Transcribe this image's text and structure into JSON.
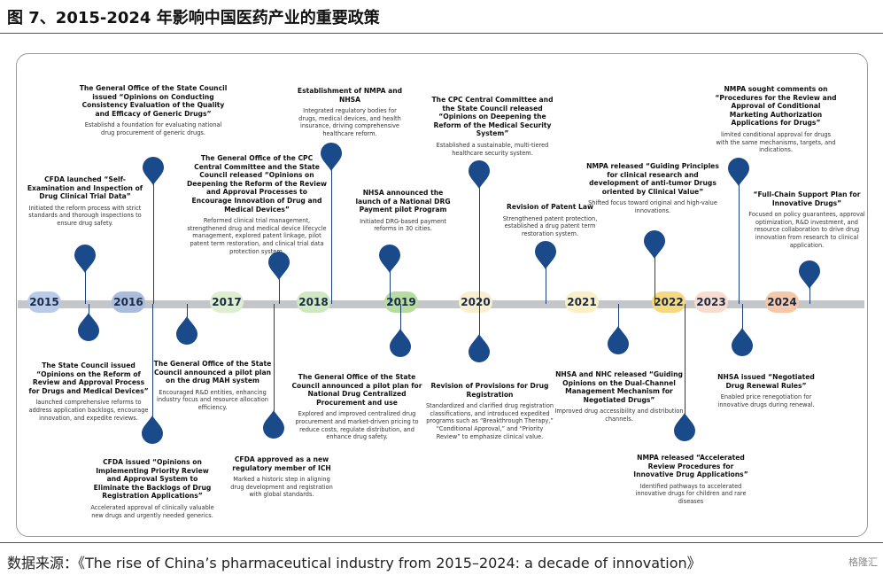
{
  "figure": {
    "title": "图 7、2015-2024 年影响中国医药产业的重要政策",
    "caption": "数据来源：《The rise of China’s pharmaceutical industry from 2015–2024: a decade of innovation》",
    "brand": "格隆汇"
  },
  "colors": {
    "pin": "#1a4a8a",
    "stem": "#1a3f7a",
    "axis": "#c4c6ca"
  },
  "years": [
    {
      "label": "2015",
      "color": "#b9cbe8"
    },
    {
      "label": "2016",
      "color": "#aabdde"
    },
    {
      "label": "2017",
      "color": "#dcefcf"
    },
    {
      "label": "2018",
      "color": "#cfe8c2"
    },
    {
      "label": "2019",
      "color": "#b7dc9f"
    },
    {
      "label": "2020",
      "color": "#f7efcf"
    },
    {
      "label": "2021",
      "color": "#faf0c8"
    },
    {
      "label": "2022",
      "color": "#f6d97f"
    },
    {
      "label": "2023",
      "color": "#f8dccf"
    },
    {
      "label": "2024",
      "color": "#f4c8a8"
    }
  ],
  "events": [
    {
      "id": "e1",
      "title": "CFDA launched “Self-Examination and Inspection of Drug Clinical Trial Data”",
      "detail": "Initiated the reform process with strict standards and thorough inspections to ensure drug safety."
    },
    {
      "id": "e2",
      "title": "The General Office of the State Council issued “Opinions on Conducting Consistency Evaluation of the Quality and Efficacy of Generic Drugs”",
      "detail": "Establishd a foundation for evaluating national drug procurement of generic drugs."
    },
    {
      "id": "e3",
      "title": "The General Office of the CPC Central Committee and the State Council released “Opinions on Deepening the Reform of the Review and Approval Processes to Encourage Innovation of Drug and Medical Devices”",
      "detail": "Reformed clinical trial management, strengthened drug and medical device lifecycle management, explored patent linkage, pilot patent term restoration, and clinical trial data protection system."
    },
    {
      "id": "e4",
      "title": "Establishment of NMPA and NHSA",
      "detail": "Integrated regulatory bodies for drugs, medical devices, and health insurance, driving comprehensive healthcare reform."
    },
    {
      "id": "e5",
      "title": "NHSA announced the launch of a National DRG Payment pilot Program",
      "detail": "Initiated DRG-based payment reforms in 30 cities."
    },
    {
      "id": "e6",
      "title": "The CPC Central Committee and the State Council released “Opinions on Deepening the Reform of the Medical Security System”",
      "detail": "Established a sustainable, multi-tiered healthcare security system."
    },
    {
      "id": "e7",
      "title": "Revision of Patent Law",
      "detail": "Strengthened patent protection, established a drug patent term restoration system."
    },
    {
      "id": "e8",
      "title": "NMPA released “Guiding Principles for clinical research and development of anti-tumor Drugs oriented by Clinical Value”",
      "detail": "Shifted focus toward original and high-value innovations."
    },
    {
      "id": "e9",
      "title": "NMPA sought comments on “Procedures for the Review and Approval of Conditional Marketing Authorization Applications for Drugs”",
      "detail": "limited conditional approval for drugs with the same mechanisms, targets, and indications."
    },
    {
      "id": "e10",
      "title": "“Full-Chain Support Plan for Innovative Drugs”",
      "detail": "Focused on policy guarantees, approval optimization, R&D investment, and resource collaboration to drive drug innovation from research to clinical application."
    },
    {
      "id": "e11",
      "title": "The State Council issued “Opinions on the Reform of Review and Approval Process for Drugs and Medical Devices”",
      "detail": "launched comprehensive reforms to address application backlogs, encourage innovation, and expedite reviews."
    },
    {
      "id": "e12",
      "title": "CFDA issued “Opinions on Implementing Priority Review and Approval System to Eliminate the Backlogs of Drug Registration Applications”",
      "detail": "Accelerated approval of clinically valuable new drugs and urgently needed generics."
    },
    {
      "id": "e13",
      "title": "The General Office of the State Council announced a pilot plan on the drug MAH system",
      "detail": "Encouraged R&D entities, enhancing industry focus and resource allocation efficiency."
    },
    {
      "id": "e14",
      "title": "CFDA approved as a new regulatory member of ICH",
      "detail": "Marked a historic step in aligning drug development and registration with global standards."
    },
    {
      "id": "e15",
      "title": "The General Office of the State Council announced a pilot plan for National Drug Centralized Procurement and use",
      "detail": "Explored and improved centralized drug procurement and market-driven pricing to reduce costs, regulate distribution, and enhance drug safety."
    },
    {
      "id": "e16",
      "title": "Revision of Provisions for Drug Registration",
      "detail": "Standardized and clarified drug registration classifications, and introduced expedited programs such as “Breakthrough Therapy,” “Conditional Approval,” and “Priority Review” to emphasize clinical value."
    },
    {
      "id": "e17",
      "title": "NHSA and NHC released “Guiding Opinions on the Dual-Channel Management Mechanism for Negotiated Drugs”",
      "detail": "Improved drug accessibility and distribution channels."
    },
    {
      "id": "e18",
      "title": "NMPA released “Accelerated Review Procedures for Innovative Drug Applications”",
      "detail": "Identified pathways to accelerated innovative drugs for children and rare diseases"
    },
    {
      "id": "e19",
      "title": "NHSA issued “Negotiated Drug Renewal Rules”",
      "detail": "Enabled price renegotiation for innovative drugs during renewal."
    }
  ]
}
